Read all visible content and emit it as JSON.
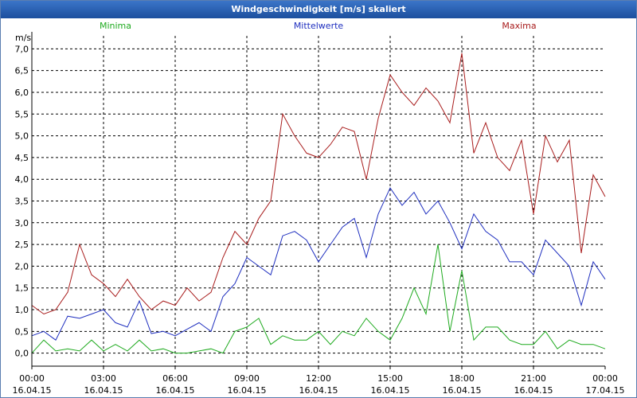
{
  "window_title": "Windgeschwindigkeit [m/s] skaliert",
  "chart_data": {
    "type": "line",
    "title": "Windgeschwindigkeit [m/s] skaliert",
    "ylabel": "m/s",
    "ylim": [
      -0.3,
      7.3
    ],
    "yticks": [
      {
        "v": 0.0,
        "label": "0,0"
      },
      {
        "v": 0.5,
        "label": "0,5"
      },
      {
        "v": 1.0,
        "label": "1,0"
      },
      {
        "v": 1.5,
        "label": "1,5"
      },
      {
        "v": 2.0,
        "label": "2,0"
      },
      {
        "v": 2.5,
        "label": "2,5"
      },
      {
        "v": 3.0,
        "label": "3,0"
      },
      {
        "v": 3.5,
        "label": "3,5"
      },
      {
        "v": 4.0,
        "label": "4,0"
      },
      {
        "v": 4.5,
        "label": "4,5"
      },
      {
        "v": 5.0,
        "label": "5,0"
      },
      {
        "v": 5.5,
        "label": "5,5"
      },
      {
        "v": 6.0,
        "label": "6,0"
      },
      {
        "v": 6.5,
        "label": "6,5"
      },
      {
        "v": 7.0,
        "label": "7,0"
      }
    ],
    "xlim_hours": [
      0,
      24
    ],
    "xticks": [
      {
        "h": 0,
        "time": "00:00",
        "date": "16.04.15"
      },
      {
        "h": 3,
        "time": "03:00",
        "date": "16.04.15"
      },
      {
        "h": 6,
        "time": "06:00",
        "date": "16.04.15"
      },
      {
        "h": 9,
        "time": "09:00",
        "date": "16.04.15"
      },
      {
        "h": 12,
        "time": "12:00",
        "date": "16.04.15"
      },
      {
        "h": 15,
        "time": "15:00",
        "date": "16.04.15"
      },
      {
        "h": 18,
        "time": "18:00",
        "date": "16.04.15"
      },
      {
        "h": 21,
        "time": "21:00",
        "date": "16.04.15"
      },
      {
        "h": 24,
        "time": "00:00",
        "date": "17.04.15"
      }
    ],
    "grid": true,
    "legend_position": "top",
    "series": [
      {
        "name": "Minima",
        "color": "#1faa1f",
        "x": [
          0,
          0.5,
          1,
          1.5,
          2,
          2.5,
          3,
          3.5,
          4,
          4.5,
          5,
          5.5,
          6,
          6.5,
          7,
          7.5,
          8,
          8.5,
          9,
          9.5,
          10,
          10.5,
          11,
          11.5,
          12,
          12.5,
          13,
          13.5,
          14,
          14.5,
          15,
          15.5,
          16,
          16.5,
          17,
          17.5,
          18,
          18.5,
          19,
          19.5,
          20,
          20.5,
          21,
          21.5,
          22,
          22.5,
          23,
          23.5,
          24
        ],
        "values": [
          0.0,
          0.3,
          0.05,
          0.1,
          0.05,
          0.3,
          0.05,
          0.2,
          0.05,
          0.3,
          0.05,
          0.1,
          0.0,
          0.0,
          0.05,
          0.1,
          0.0,
          0.5,
          0.6,
          0.8,
          0.2,
          0.4,
          0.3,
          0.3,
          0.5,
          0.2,
          0.5,
          0.4,
          0.8,
          0.5,
          0.3,
          0.8,
          1.5,
          0.9,
          2.5,
          0.5,
          1.9,
          0.3,
          0.6,
          0.6,
          0.3,
          0.2,
          0.2,
          0.5,
          0.1,
          0.3,
          0.2,
          0.2,
          0.1
        ]
      },
      {
        "name": "Mittelwerte",
        "color": "#1f2fbf",
        "x": [
          0,
          0.5,
          1,
          1.5,
          2,
          2.5,
          3,
          3.5,
          4,
          4.5,
          5,
          5.5,
          6,
          6.5,
          7,
          7.5,
          8,
          8.5,
          9,
          9.5,
          10,
          10.5,
          11,
          11.5,
          12,
          12.5,
          13,
          13.5,
          14,
          14.5,
          15,
          15.5,
          16,
          16.5,
          17,
          17.5,
          18,
          18.5,
          19,
          19.5,
          20,
          20.5,
          21,
          21.5,
          22,
          22.5,
          23,
          23.5,
          24
        ],
        "values": [
          0.4,
          0.5,
          0.3,
          0.85,
          0.8,
          0.9,
          1.0,
          0.7,
          0.6,
          1.2,
          0.45,
          0.5,
          0.4,
          0.55,
          0.7,
          0.5,
          1.3,
          1.6,
          2.2,
          2.0,
          1.8,
          2.7,
          2.8,
          2.6,
          2.1,
          2.5,
          2.9,
          3.1,
          2.2,
          3.2,
          3.8,
          3.4,
          3.7,
          3.2,
          3.5,
          3.0,
          2.4,
          3.2,
          2.8,
          2.6,
          2.1,
          2.1,
          1.8,
          2.6,
          2.3,
          2.0,
          1.1,
          2.1,
          1.7
        ]
      },
      {
        "name": "Maxima",
        "color": "#a81c1c",
        "x": [
          0,
          0.5,
          1,
          1.5,
          2,
          2.5,
          3,
          3.5,
          4,
          4.5,
          5,
          5.5,
          6,
          6.5,
          7,
          7.5,
          8,
          8.5,
          9,
          9.5,
          10,
          10.5,
          11,
          11.5,
          12,
          12.5,
          13,
          13.5,
          14,
          14.5,
          15,
          15.5,
          16,
          16.5,
          17,
          17.5,
          18,
          18.5,
          19,
          19.5,
          20,
          20.5,
          21,
          21.5,
          22,
          22.5,
          23,
          23.5,
          24
        ],
        "values": [
          1.1,
          0.9,
          1.0,
          1.4,
          2.5,
          1.8,
          1.6,
          1.3,
          1.7,
          1.3,
          1.0,
          1.2,
          1.1,
          1.5,
          1.2,
          1.4,
          2.2,
          2.8,
          2.5,
          3.1,
          3.5,
          5.5,
          5.0,
          4.6,
          4.5,
          4.8,
          5.2,
          5.1,
          4.0,
          5.4,
          6.4,
          6.0,
          5.7,
          6.1,
          5.8,
          5.3,
          6.9,
          4.6,
          5.3,
          4.5,
          4.2,
          4.9,
          3.2,
          5.0,
          4.4,
          4.9,
          2.3,
          4.1,
          3.6
        ]
      }
    ]
  }
}
